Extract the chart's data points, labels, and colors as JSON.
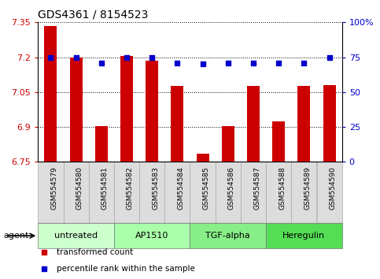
{
  "title": "GDS4361 / 8154523",
  "categories": [
    "GSM554579",
    "GSM554580",
    "GSM554581",
    "GSM554582",
    "GSM554583",
    "GSM554584",
    "GSM554585",
    "GSM554586",
    "GSM554587",
    "GSM554588",
    "GSM554589",
    "GSM554590"
  ],
  "bar_values": [
    7.335,
    7.2,
    6.905,
    7.205,
    7.185,
    7.075,
    6.785,
    6.905,
    7.075,
    6.925,
    7.075,
    7.08
  ],
  "percentile_values": [
    75,
    75,
    71,
    75,
    75,
    71,
    70,
    71,
    71,
    71,
    71,
    75
  ],
  "ylim_left": [
    6.75,
    7.35
  ],
  "ylim_right": [
    0,
    100
  ],
  "yticks_left": [
    6.75,
    6.9,
    7.05,
    7.2,
    7.35
  ],
  "yticks_right": [
    0,
    25,
    50,
    75,
    100
  ],
  "ytick_labels_left": [
    "6.75",
    "6.9",
    "7.05",
    "7.2",
    "7.35"
  ],
  "ytick_labels_right": [
    "0",
    "25",
    "50",
    "75",
    "100%"
  ],
  "bar_color": "#cc0000",
  "percentile_color": "#0000cc",
  "background_plot": "#ffffff",
  "agent_groups": [
    {
      "label": "untreated",
      "start": 0,
      "end": 3,
      "color": "#ccffcc"
    },
    {
      "label": "AP1510",
      "start": 3,
      "end": 6,
      "color": "#aaffaa"
    },
    {
      "label": "TGF-alpha",
      "start": 6,
      "end": 9,
      "color": "#88ee88"
    },
    {
      "label": "Heregulin",
      "start": 9,
      "end": 12,
      "color": "#55dd55"
    }
  ],
  "legend_bar_label": "transformed count",
  "legend_pct_label": "percentile rank within the sample",
  "bar_base": 6.75,
  "bar_width": 0.5,
  "fig_width": 4.83,
  "fig_height": 3.54,
  "dpi": 100
}
